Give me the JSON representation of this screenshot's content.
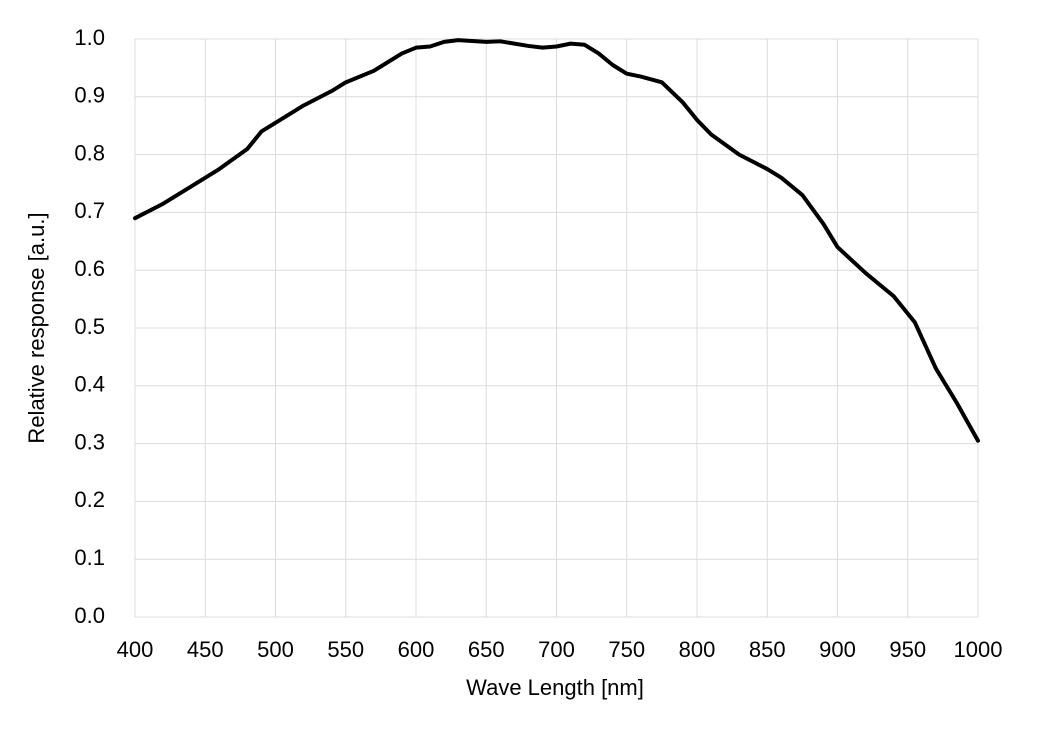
{
  "chart_data": {
    "type": "line",
    "x_label": "Wave Length [nm]",
    "y_label": "Relative response [a.u.]",
    "x": [
      400,
      420,
      440,
      460,
      480,
      490,
      500,
      520,
      540,
      550,
      570,
      590,
      600,
      610,
      620,
      630,
      650,
      660,
      680,
      690,
      700,
      710,
      720,
      730,
      740,
      750,
      760,
      775,
      790,
      800,
      810,
      830,
      850,
      860,
      875,
      890,
      900,
      920,
      940,
      955,
      970,
      985,
      1000
    ],
    "series": [
      {
        "name": "Relative response",
        "color": "#000000",
        "values": [
          0.69,
          0.715,
          0.745,
          0.775,
          0.81,
          0.84,
          0.855,
          0.885,
          0.91,
          0.925,
          0.945,
          0.975,
          0.985,
          0.987,
          0.995,
          0.998,
          0.995,
          0.996,
          0.988,
          0.985,
          0.987,
          0.992,
          0.99,
          0.975,
          0.955,
          0.94,
          0.935,
          0.925,
          0.89,
          0.86,
          0.835,
          0.8,
          0.775,
          0.76,
          0.73,
          0.68,
          0.64,
          0.595,
          0.555,
          0.51,
          0.43,
          0.37,
          0.305
        ]
      }
    ],
    "xlim": [
      400,
      1000
    ],
    "xticks": [
      400,
      450,
      500,
      550,
      600,
      650,
      700,
      750,
      800,
      850,
      900,
      950,
      1000
    ],
    "ylim": [
      0,
      1
    ],
    "yticks": [
      {
        "value": 0,
        "label": "0.0"
      },
      0.1,
      0.2,
      0.3,
      0.4,
      0.5,
      0.6,
      0.7,
      0.8,
      0.9,
      {
        "value": 1,
        "label": "1.0"
      }
    ],
    "grid": true
  }
}
